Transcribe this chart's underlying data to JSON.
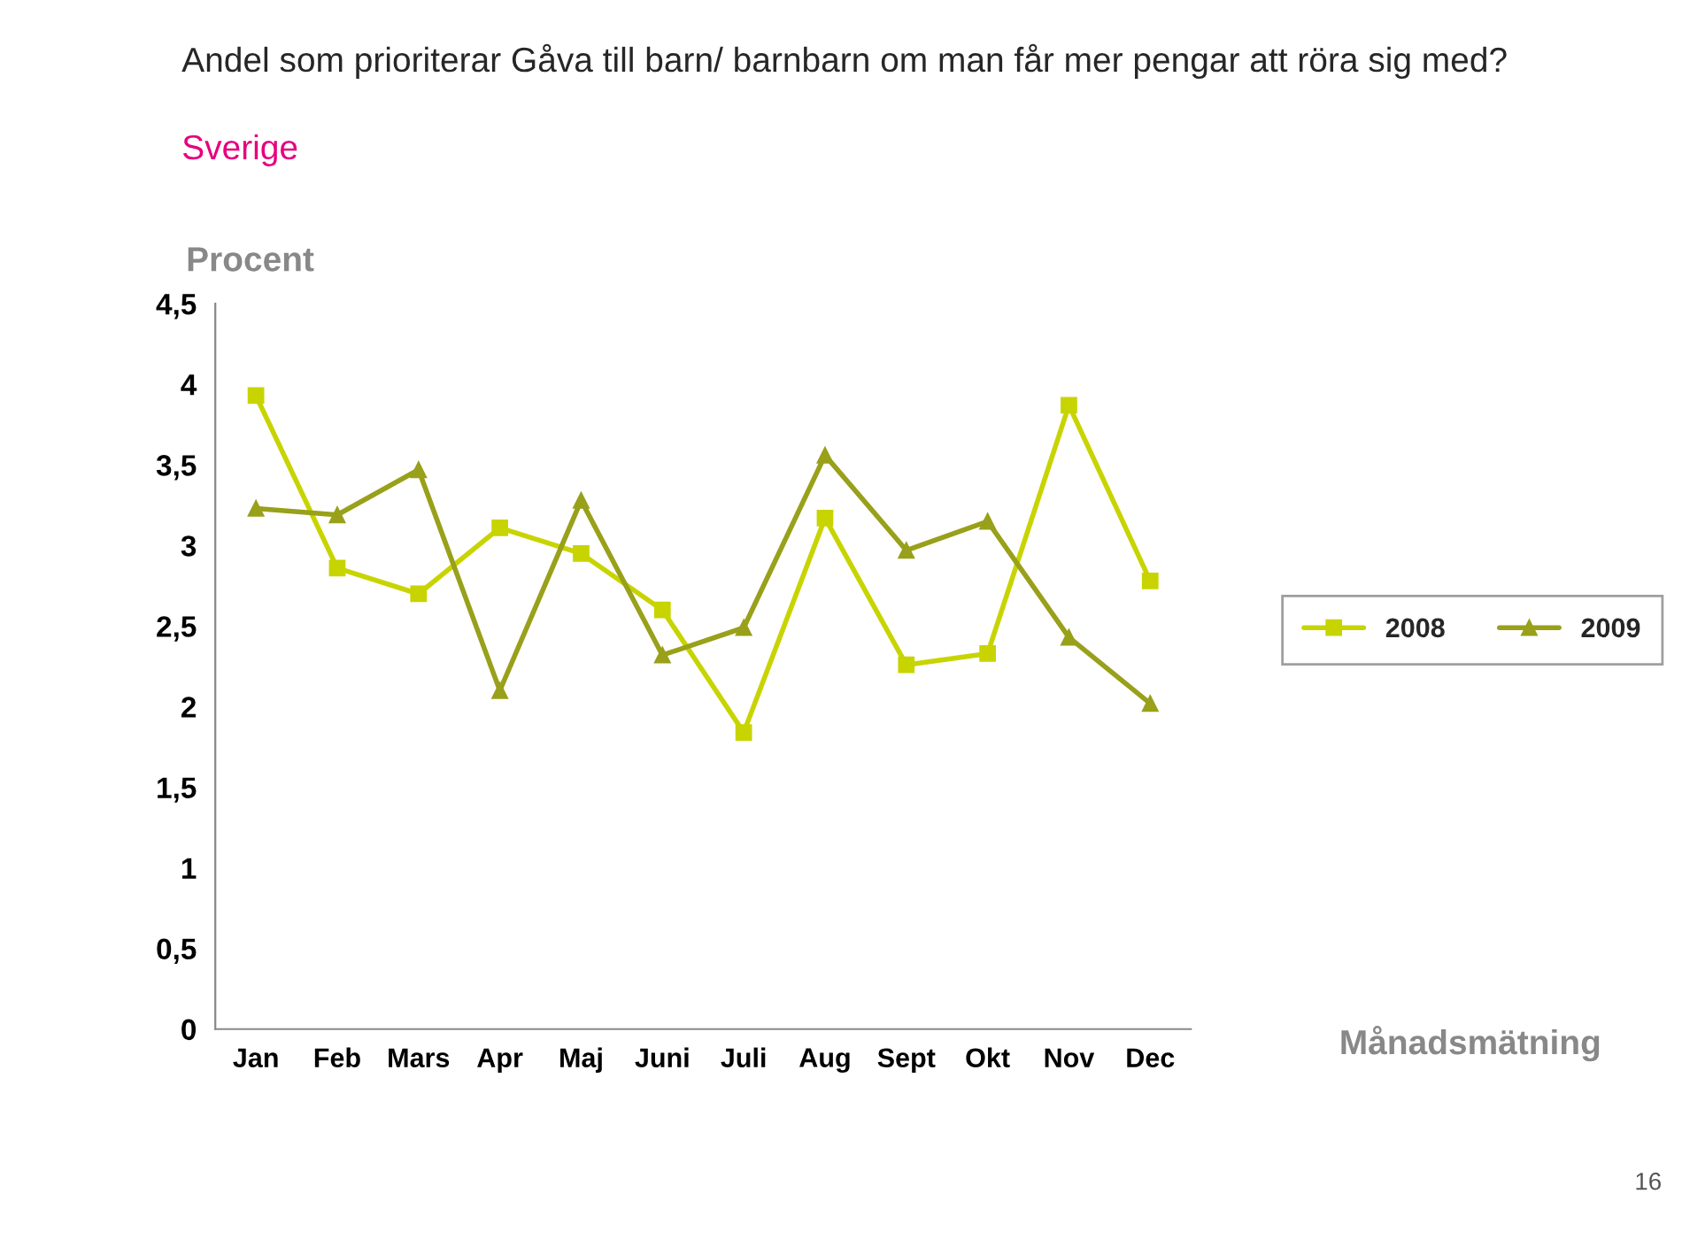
{
  "chart_data": {
    "type": "line",
    "title": "Andel som prioriterar Gåva till barn/ barnbarn om man får mer pengar att röra sig med?",
    "subtitle": "Sverige",
    "ylabel": "Procent",
    "xlabel": "Månadsmätning",
    "categories": [
      "Jan",
      "Feb",
      "Mars",
      "Apr",
      "Maj",
      "Juni",
      "Juli",
      "Aug",
      "Sept",
      "Okt",
      "Nov",
      "Dec"
    ],
    "series": [
      {
        "name": "2008",
        "color": "#c8d400",
        "marker": "square",
        "values": [
          3.93,
          2.86,
          2.7,
          3.11,
          2.95,
          2.6,
          1.84,
          3.17,
          2.26,
          2.33,
          3.87,
          2.78
        ]
      },
      {
        "name": "2009",
        "color": "#99a01a",
        "marker": "triangle",
        "values": [
          3.23,
          3.19,
          3.47,
          2.1,
          3.28,
          2.32,
          2.49,
          3.56,
          2.97,
          3.15,
          2.43,
          2.02
        ]
      }
    ],
    "ylim": [
      0,
      4.5
    ],
    "yticks": [
      0,
      {
        "value": 0.5,
        "label": "0,5"
      },
      1,
      {
        "value": 1.5,
        "label": "1,5"
      },
      2,
      {
        "value": 2.5,
        "label": "2,5"
      },
      3,
      {
        "value": 3.5,
        "label": "3,5"
      },
      4,
      {
        "value": 4.5,
        "label": "4,5"
      }
    ],
    "grid": false,
    "legend": "right",
    "line_style": "solid",
    "annotations": [
      "16"
    ]
  }
}
